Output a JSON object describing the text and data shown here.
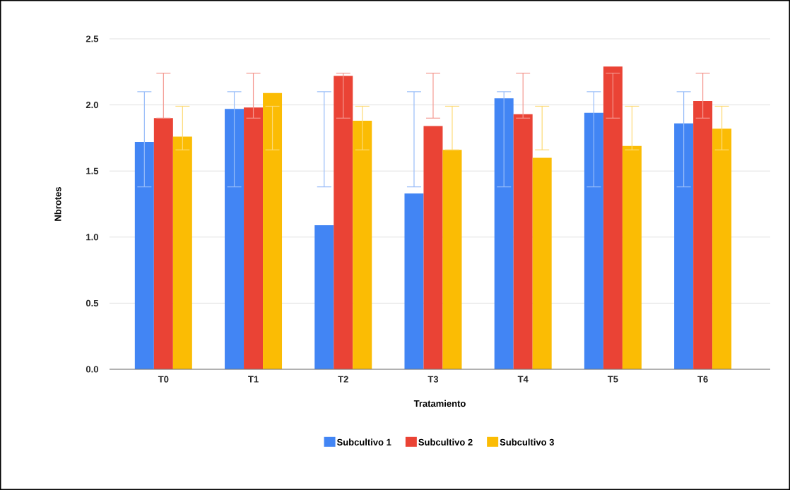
{
  "chart_data": {
    "type": "bar",
    "xlabel": "Tratamiento",
    "ylabel": "Nbrotes",
    "categories": [
      "T0",
      "T1",
      "T2",
      "T3",
      "T4",
      "T5",
      "T6"
    ],
    "series": [
      {
        "name": "Subcultivo 1",
        "color": "#4285f4",
        "values": [
          1.72,
          1.97,
          1.09,
          1.33,
          2.05,
          1.94,
          1.86
        ],
        "errors": [
          [
            1.38,
            2.1
          ],
          [
            1.38,
            2.1
          ],
          [
            1.38,
            2.1
          ],
          [
            1.38,
            2.1
          ],
          [
            1.38,
            2.1
          ],
          [
            1.38,
            2.1
          ],
          [
            1.38,
            2.1
          ]
        ]
      },
      {
        "name": "Subcultivo 2",
        "color": "#ea4335",
        "values": [
          1.9,
          1.98,
          2.22,
          1.84,
          1.93,
          2.29,
          2.03
        ],
        "errors": [
          [
            1.9,
            2.24
          ],
          [
            1.9,
            2.24
          ],
          [
            1.9,
            2.24
          ],
          [
            1.9,
            2.24
          ],
          [
            1.9,
            2.24
          ],
          [
            1.9,
            2.24
          ],
          [
            1.9,
            2.24
          ]
        ]
      },
      {
        "name": "Subcultivo 3",
        "color": "#fbbc04",
        "values": [
          1.76,
          2.09,
          1.88,
          1.66,
          1.6,
          1.69,
          1.82
        ],
        "errors": [
          [
            1.66,
            1.99
          ],
          [
            1.66,
            1.99
          ],
          [
            1.66,
            1.99
          ],
          [
            1.66,
            1.99
          ],
          [
            1.66,
            1.99
          ],
          [
            1.66,
            1.99
          ],
          [
            1.66,
            1.99
          ]
        ]
      }
    ],
    "ylim": [
      0,
      2.5
    ],
    "yticks": [
      {
        "value": 0,
        "label": "0.0"
      },
      {
        "value": 0.5,
        "label": "0.5"
      },
      {
        "value": 1,
        "label": "1.0"
      },
      {
        "value": 1.5,
        "label": "1.5"
      },
      {
        "value": 2,
        "label": "2.0"
      },
      {
        "value": 2.5,
        "label": "2.5"
      }
    ],
    "grid": "y",
    "legend": "bottom"
  }
}
